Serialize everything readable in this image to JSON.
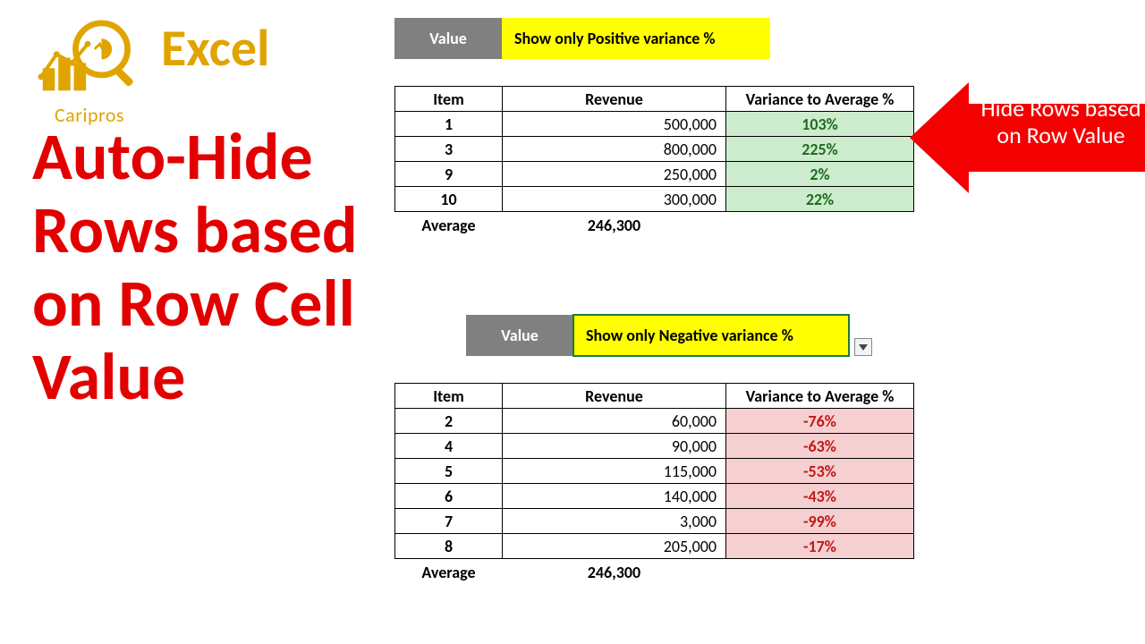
{
  "brand": {
    "name": "Caripros",
    "app": "Excel",
    "name_color": "#e0a400",
    "app_color": "#e0a400",
    "logo_colors": {
      "bars": "#e0a400",
      "glass": "#e0a400",
      "line": "#e0a400"
    }
  },
  "title": {
    "text": "Auto-Hide Rows based on Row Cell Value",
    "color": "#e20000",
    "fontsize": 74
  },
  "callout": {
    "text": "Hide Rows based on Row Value",
    "bg": "#f40000",
    "fg": "#ffffff"
  },
  "common": {
    "value_label": "Value",
    "value_label_bg": "#808080",
    "value_label_fg": "#ffffff",
    "value_bg": "#ffff00",
    "headers": {
      "item": "Item",
      "revenue": "Revenue",
      "variance": "Variance to Average %"
    },
    "average_label": "Average",
    "average_value": "246,300",
    "border_color": "#000000"
  },
  "top": {
    "value_text": "Show only Positive variance %",
    "variance_class": "pos",
    "variance_bg": "#cdeccd",
    "variance_fg": "#1e6b1e",
    "rows": [
      {
        "item": "1",
        "revenue": "500,000",
        "variance": "103%"
      },
      {
        "item": "3",
        "revenue": "800,000",
        "variance": "225%"
      },
      {
        "item": "9",
        "revenue": "250,000",
        "variance": "2%"
      },
      {
        "item": "10",
        "revenue": "300,000",
        "variance": "22%"
      }
    ]
  },
  "bottom": {
    "value_text": "Show only Negative variance %",
    "selected": true,
    "variance_class": "neg",
    "variance_bg": "#f6cfd1",
    "variance_fg": "#c21818",
    "rows": [
      {
        "item": "2",
        "revenue": "60,000",
        "variance": "-76%"
      },
      {
        "item": "4",
        "revenue": "90,000",
        "variance": "-63%"
      },
      {
        "item": "5",
        "revenue": "115,000",
        "variance": "-53%"
      },
      {
        "item": "6",
        "revenue": "140,000",
        "variance": "-43%"
      },
      {
        "item": "7",
        "revenue": "3,000",
        "variance": "-99%"
      },
      {
        "item": "8",
        "revenue": "205,000",
        "variance": "-17%"
      }
    ]
  }
}
